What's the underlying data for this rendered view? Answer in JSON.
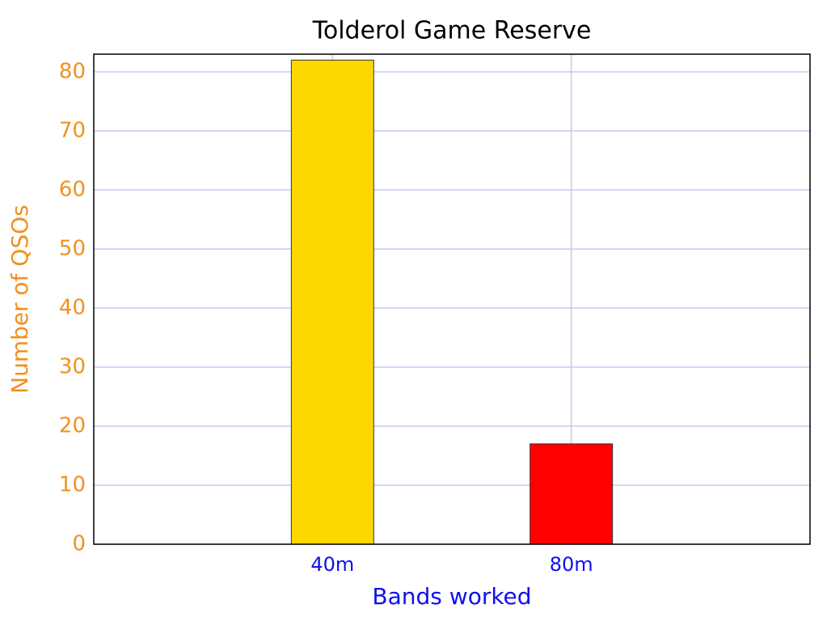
{
  "chart_data": {
    "type": "bar",
    "title": "Tolderol Game Reserve",
    "x_label": "Bands worked",
    "y_label": "Number of QSOs",
    "categories": [
      "40m",
      "80m"
    ],
    "values": [
      82,
      17
    ],
    "colors": [
      "#ffd700",
      "#ff0000"
    ],
    "ylim": [
      0,
      83
    ],
    "yticks": [
      0,
      10,
      20,
      30,
      40,
      50,
      60,
      70,
      80
    ],
    "grid": true
  }
}
